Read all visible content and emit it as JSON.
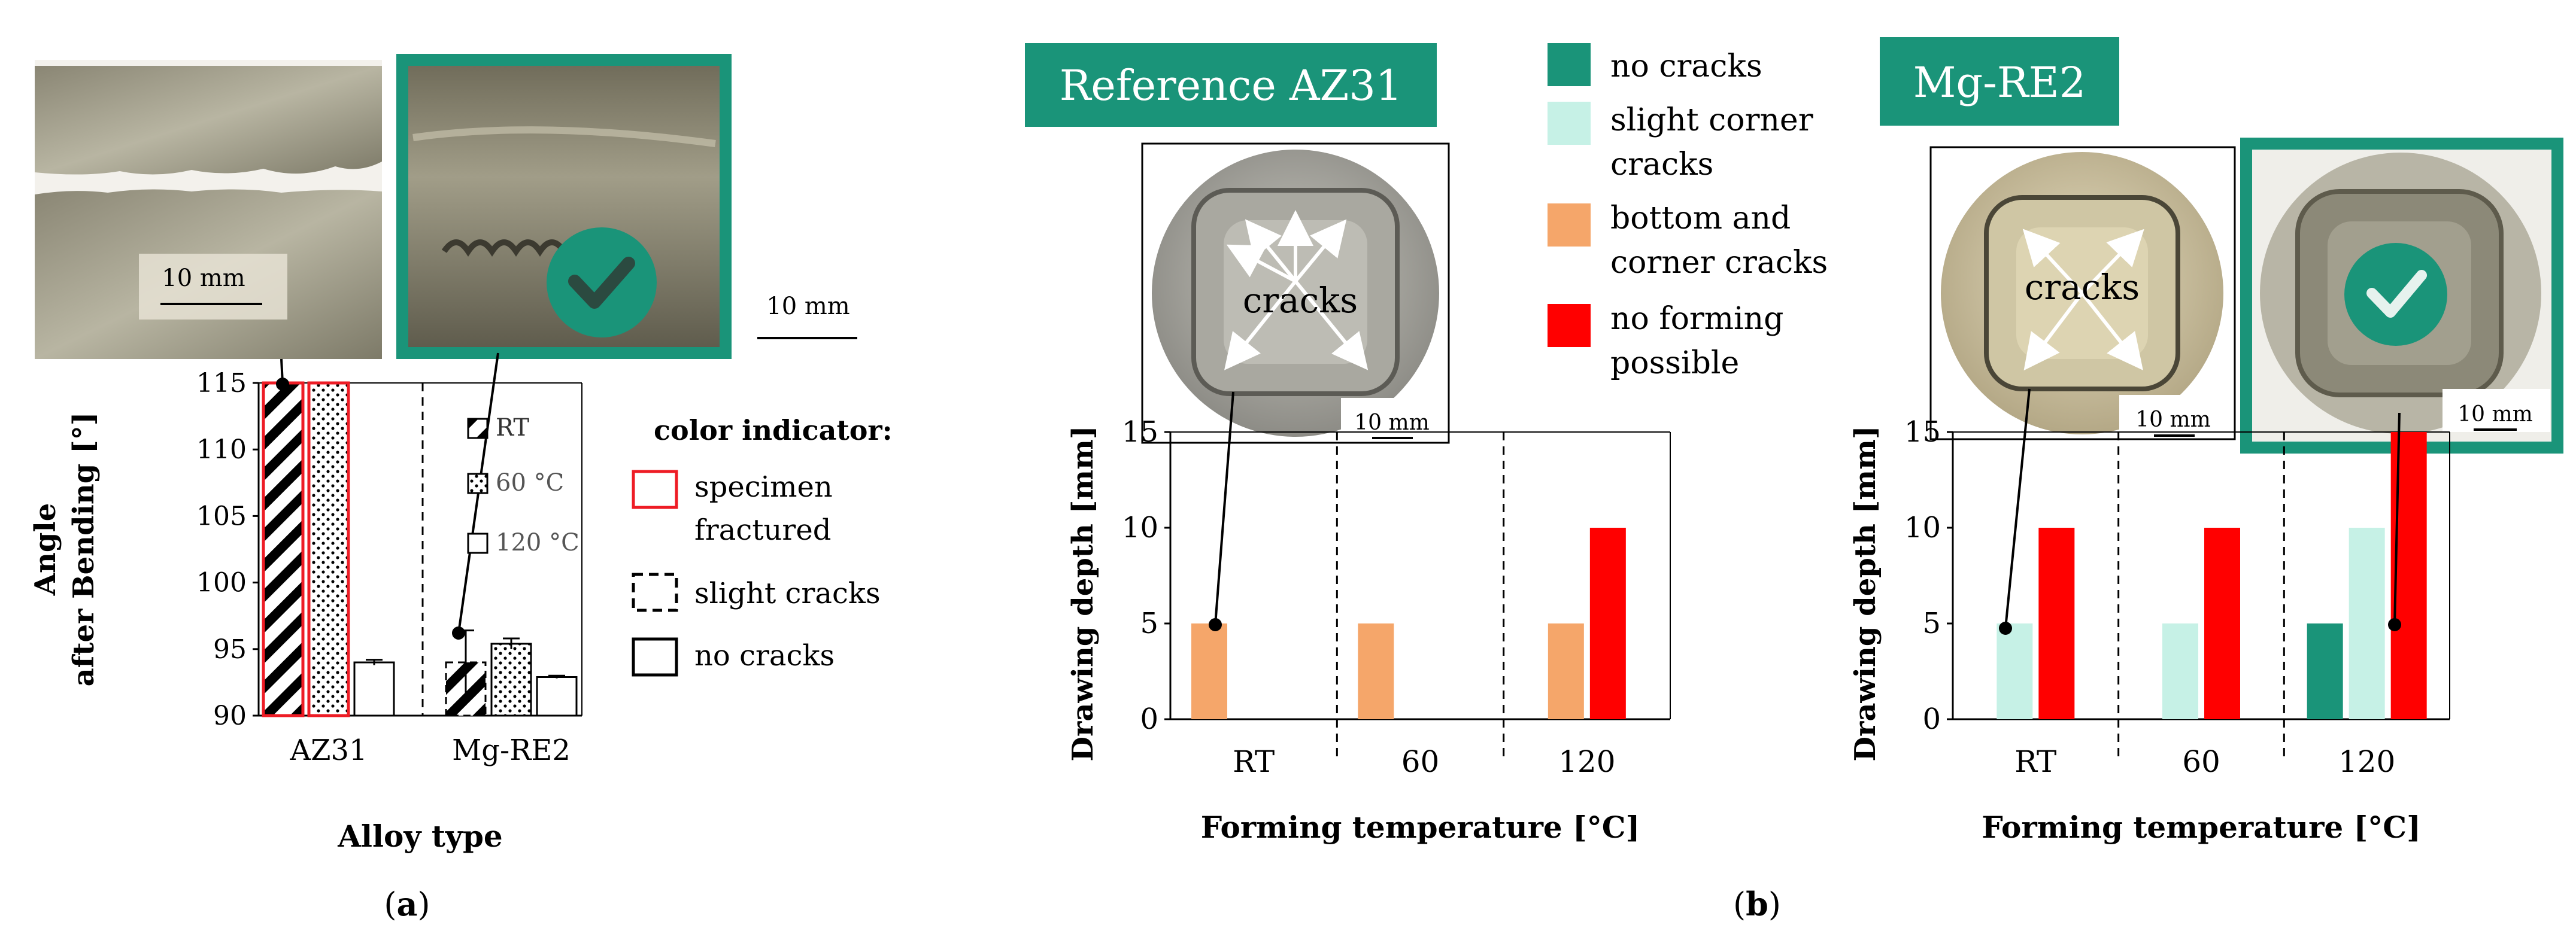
{
  "colors": {
    "teal": "#1a9479",
    "light_teal": "#c6f1e6",
    "orange": "#f5a66a",
    "red": "#ff0000",
    "fracture_red": "#ee1c25"
  },
  "panel_a": {
    "scale_10mm_a": "10 mm",
    "scale_10mm_b": "10 mm",
    "check_icon": "check-icon",
    "sublabel": "(a)",
    "legend_title": "color indicator:",
    "legend_items": [
      "specimen fractured",
      "slight cracks",
      "no cracks"
    ],
    "pattern_legend": [
      "RT",
      "60 °C",
      "120 °C"
    ]
  },
  "panel_b": {
    "sublabel": "(b)",
    "ref_title": "Reference AZ31",
    "mg_title": "Mg-RE2",
    "cracks_label": "cracks",
    "scale_10mm": "10 mm",
    "legend": [
      "no cracks",
      "slight corner cracks",
      "bottom and corner cracks",
      "no forming possible"
    ]
  },
  "chart_data": [
    {
      "type": "bar",
      "id": "bending-angle",
      "xlabel": "Alloy type",
      "ylabel": "Angle after Bending [°]",
      "categories": [
        "AZ31",
        "Mg-RE2"
      ],
      "series_labels": [
        "RT",
        "60 °C",
        "120 °C"
      ],
      "series": [
        {
          "name": "RT",
          "values": [
            115,
            94.0
          ],
          "status": [
            "specimen fractured",
            "slight cracks"
          ]
        },
        {
          "name": "60 °C",
          "values": [
            115,
            95.4
          ],
          "status": [
            "specimen fractured",
            "no cracks"
          ]
        },
        {
          "name": "120 °C",
          "values": [
            94.0,
            92.9
          ],
          "status": [
            "no cracks",
            "no cracks"
          ]
        }
      ],
      "error_bars": {
        "RT": [
          null,
          2.4
        ],
        "60 °C": [
          null,
          0.4
        ],
        "120 °C": [
          0.2,
          0.1
        ]
      },
      "ylim": [
        90,
        115
      ],
      "yticks": [
        "90",
        "95",
        "100",
        "105",
        "110",
        "115"
      ],
      "grid": false
    },
    {
      "type": "bar",
      "id": "drawing-depth-az31",
      "title": "Reference AZ31",
      "xlabel": "Forming temperature [°C]",
      "ylabel": "Drawing depth [mm]",
      "categories": [
        "RT",
        "60",
        "120"
      ],
      "bars": [
        {
          "category": "RT",
          "value": 5,
          "status": "bottom and corner cracks"
        },
        {
          "category": "60",
          "value": 5,
          "status": "bottom and corner cracks"
        },
        {
          "category": "120",
          "value": 5,
          "status": "bottom and corner cracks"
        },
        {
          "category": "120",
          "value": 10,
          "status": "no forming possible"
        }
      ],
      "ylim": [
        0,
        15
      ],
      "yticks": [
        "0",
        "5",
        "10",
        "15"
      ]
    },
    {
      "type": "bar",
      "id": "drawing-depth-mgre2",
      "title": "Mg-RE2",
      "xlabel": "Forming temperature [°C]",
      "ylabel": "Drawing depth [mm]",
      "categories": [
        "RT",
        "60",
        "120"
      ],
      "bars": [
        {
          "category": "RT",
          "value": 5,
          "status": "slight corner cracks"
        },
        {
          "category": "RT",
          "value": 10,
          "status": "no forming possible"
        },
        {
          "category": "60",
          "value": 5,
          "status": "slight corner cracks"
        },
        {
          "category": "60",
          "value": 10,
          "status": "no forming possible"
        },
        {
          "category": "120",
          "value": 5,
          "status": "no cracks"
        },
        {
          "category": "120",
          "value": 10,
          "status": "slight corner cracks"
        },
        {
          "category": "120",
          "value": 15,
          "status": "no forming possible"
        }
      ],
      "ylim": [
        0,
        15
      ],
      "yticks": [
        "0",
        "5",
        "10",
        "15"
      ]
    }
  ]
}
